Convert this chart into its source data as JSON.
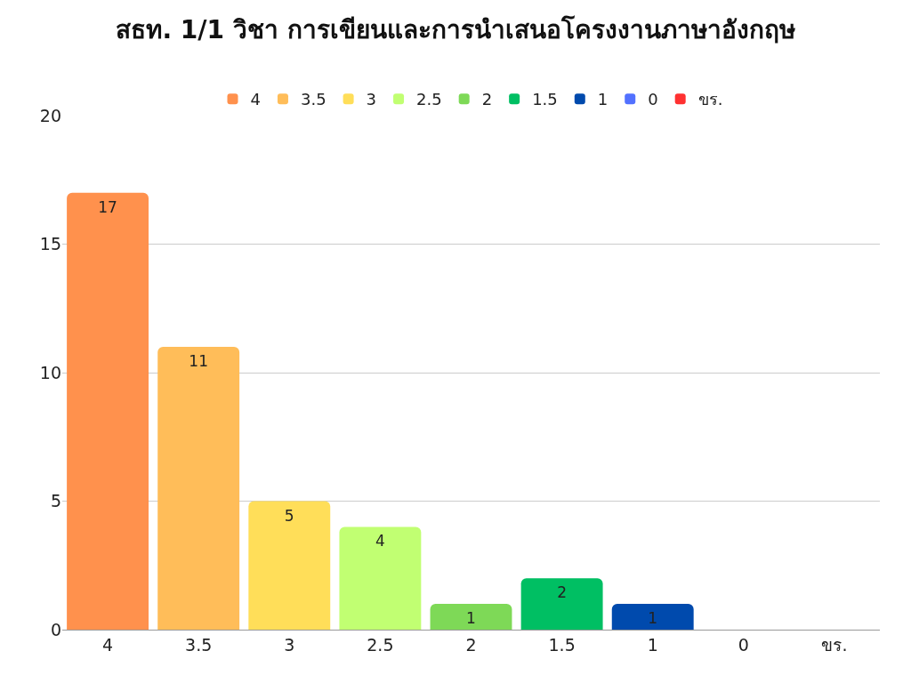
{
  "chart_data": {
    "type": "bar",
    "title": "สธท. 1/1 วิชา การเขียนและการนำเสนอโครงงานภาษาอังกฤษ",
    "categories": [
      "4",
      "3.5",
      "3",
      "2.5",
      "2",
      "1.5",
      "1",
      "0",
      "ขร."
    ],
    "series": [
      {
        "name": "4",
        "color": "#ff914d",
        "values": [
          17,
          null,
          null,
          null,
          null,
          null,
          null,
          null,
          null
        ],
        "value_labels": [
          "17",
          null,
          null,
          null,
          null,
          null,
          null,
          null,
          null
        ]
      },
      {
        "name": "3.5",
        "color": "#ffbd59",
        "values": [
          null,
          11,
          null,
          null,
          null,
          null,
          null,
          null,
          null
        ],
        "value_labels": [
          null,
          "11",
          null,
          null,
          null,
          null,
          null,
          null,
          null
        ]
      },
      {
        "name": "3",
        "color": "#ffde59",
        "values": [
          null,
          null,
          5,
          null,
          null,
          null,
          null,
          null,
          null
        ],
        "value_labels": [
          null,
          null,
          "5",
          null,
          null,
          null,
          null,
          null,
          null
        ]
      },
      {
        "name": "2.5",
        "color": "#c1ff72",
        "values": [
          null,
          null,
          null,
          4,
          null,
          null,
          null,
          null,
          null
        ],
        "value_labels": [
          null,
          null,
          null,
          "4",
          null,
          null,
          null,
          null,
          null
        ]
      },
      {
        "name": "2",
        "color": "#7ed957",
        "values": [
          null,
          null,
          null,
          null,
          1,
          null,
          null,
          null,
          null
        ],
        "value_labels": [
          null,
          null,
          null,
          null,
          "1",
          null,
          null,
          null,
          null
        ]
      },
      {
        "name": "1.5",
        "color": "#00bf63",
        "values": [
          null,
          null,
          null,
          null,
          null,
          2,
          null,
          null,
          null
        ],
        "value_labels": [
          null,
          null,
          null,
          null,
          null,
          "2",
          null,
          null,
          null
        ]
      },
      {
        "name": "1",
        "color": "#004aad",
        "values": [
          null,
          null,
          null,
          null,
          null,
          null,
          1,
          null,
          null
        ],
        "value_labels": [
          null,
          null,
          null,
          null,
          null,
          null,
          "1",
          null,
          null
        ]
      },
      {
        "name": "0",
        "color": "#5271ff",
        "values": [
          null,
          null,
          null,
          null,
          null,
          null,
          null,
          0,
          null
        ]
      },
      {
        "name": "ขร.",
        "color": "#ff3131",
        "values": [
          null,
          null,
          null,
          null,
          null,
          null,
          null,
          null,
          0
        ]
      }
    ],
    "ylim": [
      0,
      20
    ],
    "yticks": [
      0,
      5,
      10,
      15,
      20
    ],
    "grid": "y",
    "legend": "top"
  }
}
